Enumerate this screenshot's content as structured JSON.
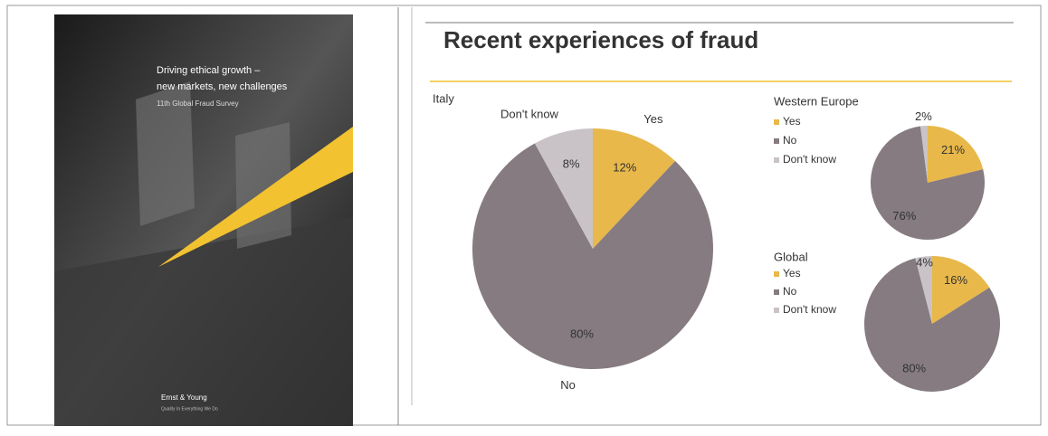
{
  "slide_title": "Recent experiences of fraud",
  "cover": {
    "lines": [
      "Driving ethical growth –",
      "new markets, new challenges",
      "11th Global Fraud Survey"
    ],
    "brand": "Ernst & Young",
    "tagline": "Quality In Everything We Do"
  },
  "chart_data": [
    {
      "type": "pie",
      "title": "Italy",
      "categories": [
        "Yes",
        "No",
        "Don't know"
      ],
      "values": [
        12,
        80,
        8
      ],
      "value_labels": [
        "12%",
        "80%",
        "8%"
      ],
      "colors": [
        "#e8b84a",
        "#857b80",
        "#c9c3c8"
      ],
      "legend": false
    },
    {
      "type": "pie",
      "title": "Western Europe",
      "categories": [
        "Yes",
        "No",
        "Don't know"
      ],
      "values": [
        21,
        76,
        2
      ],
      "value_labels": [
        "21%",
        "76%",
        "2%"
      ],
      "colors": [
        "#e8b84a",
        "#857b80",
        "#c9c3c8"
      ],
      "legend": true
    },
    {
      "type": "pie",
      "title": "Global",
      "categories": [
        "Yes",
        "No",
        "Don't know"
      ],
      "values": [
        16,
        80,
        4
      ],
      "value_labels": [
        "16%",
        "80%",
        "4%"
      ],
      "colors": [
        "#e8b84a",
        "#857b80",
        "#c9c3c8"
      ],
      "legend": true
    }
  ]
}
